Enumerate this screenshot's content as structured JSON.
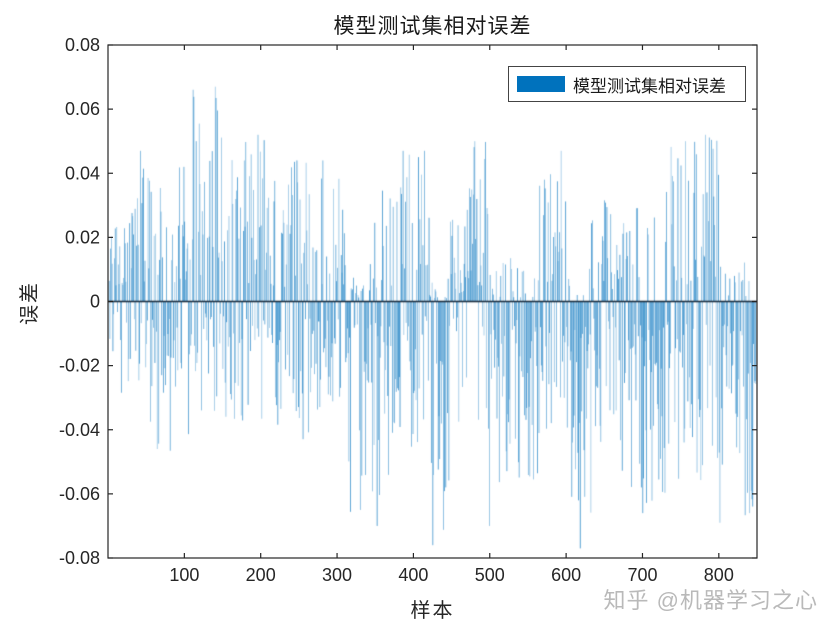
{
  "watermark": {
    "text": "知乎 @机器学习之心"
  },
  "chart_data": {
    "type": "bar",
    "title": "模型测试集相对误差",
    "xlabel": "样本",
    "ylabel": "误差",
    "legend": [
      "模型测试集相对误差"
    ],
    "legend_position": "top-right-inside",
    "bar_color": "#0072BD",
    "axis_color": "#262626",
    "baseline_color": "#16293a",
    "n_samples": 848,
    "xlim": [
      0,
      850
    ],
    "ylim": [
      -0.08,
      0.08
    ],
    "xticks": [
      100,
      200,
      300,
      400,
      500,
      600,
      700,
      800
    ],
    "yticks": [
      0.08,
      0.06,
      0.04,
      0.02,
      0,
      -0.02,
      -0.04,
      -0.06,
      -0.08
    ],
    "ytick_labels": [
      "0.08",
      "0.06",
      "0.04",
      "0.02",
      "0",
      "-0.02",
      "-0.04",
      "-0.06",
      "-0.08"
    ],
    "grid": false,
    "seed": 1337,
    "envelope_segments": [
      {
        "from": 1,
        "to": 30,
        "pos_max": 0.033,
        "neg_max": 0.03,
        "pos_frac": 0.55
      },
      {
        "from": 30,
        "to": 60,
        "pos_max": 0.047,
        "neg_max": 0.046,
        "pos_frac": 0.5
      },
      {
        "from": 60,
        "to": 105,
        "pos_max": 0.042,
        "neg_max": 0.047,
        "pos_frac": 0.52
      },
      {
        "from": 105,
        "to": 150,
        "pos_max": 0.067,
        "neg_max": 0.037,
        "pos_frac": 0.6
      },
      {
        "from": 150,
        "to": 215,
        "pos_max": 0.052,
        "neg_max": 0.04,
        "pos_frac": 0.58
      },
      {
        "from": 215,
        "to": 265,
        "pos_max": 0.044,
        "neg_max": 0.043,
        "pos_frac": 0.5
      },
      {
        "from": 265,
        "to": 312,
        "pos_max": 0.044,
        "neg_max": 0.036,
        "pos_frac": 0.45
      },
      {
        "from": 312,
        "to": 345,
        "pos_max": 0.012,
        "neg_max": 0.07,
        "pos_frac": 0.22
      },
      {
        "from": 345,
        "to": 378,
        "pos_max": 0.035,
        "neg_max": 0.066,
        "pos_frac": 0.3
      },
      {
        "from": 378,
        "to": 420,
        "pos_max": 0.047,
        "neg_max": 0.046,
        "pos_frac": 0.5
      },
      {
        "from": 420,
        "to": 447,
        "pos_max": 0.01,
        "neg_max": 0.076,
        "pos_frac": 0.18
      },
      {
        "from": 447,
        "to": 468,
        "pos_max": 0.026,
        "neg_max": 0.042,
        "pos_frac": 0.45
      },
      {
        "from": 468,
        "to": 497,
        "pos_max": 0.05,
        "neg_max": 0.046,
        "pos_frac": 0.55
      },
      {
        "from": 497,
        "to": 527,
        "pos_max": 0.014,
        "neg_max": 0.07,
        "pos_frac": 0.25
      },
      {
        "from": 527,
        "to": 562,
        "pos_max": 0.012,
        "neg_max": 0.056,
        "pos_frac": 0.22
      },
      {
        "from": 562,
        "to": 601,
        "pos_max": 0.047,
        "neg_max": 0.051,
        "pos_frac": 0.45
      },
      {
        "from": 601,
        "to": 632,
        "pos_max": 0.012,
        "neg_max": 0.077,
        "pos_frac": 0.18
      },
      {
        "from": 632,
        "to": 668,
        "pos_max": 0.036,
        "neg_max": 0.046,
        "pos_frac": 0.45
      },
      {
        "from": 668,
        "to": 722,
        "pos_max": 0.03,
        "neg_max": 0.068,
        "pos_frac": 0.28
      },
      {
        "from": 722,
        "to": 772,
        "pos_max": 0.05,
        "neg_max": 0.062,
        "pos_frac": 0.48
      },
      {
        "from": 772,
        "to": 802,
        "pos_max": 0.052,
        "neg_max": 0.056,
        "pos_frac": 0.45
      },
      {
        "from": 802,
        "to": 848,
        "pos_max": 0.014,
        "neg_max": 0.068,
        "pos_frac": 0.18
      }
    ],
    "observed_extremes": [
      {
        "x": 42,
        "y": 0.047
      },
      {
        "x": 64,
        "y": -0.046
      },
      {
        "x": 115,
        "y": 0.05
      },
      {
        "x": 140,
        "y": 0.067
      },
      {
        "x": 196,
        "y": 0.052
      },
      {
        "x": 247,
        "y": 0.044
      },
      {
        "x": 281,
        "y": 0.044
      },
      {
        "x": 330,
        "y": -0.065
      },
      {
        "x": 352,
        "y": -0.07
      },
      {
        "x": 386,
        "y": 0.047
      },
      {
        "x": 414,
        "y": 0.047
      },
      {
        "x": 425,
        "y": -0.076
      },
      {
        "x": 480,
        "y": 0.05
      },
      {
        "x": 499,
        "y": -0.07
      },
      {
        "x": 571,
        "y": 0.038
      },
      {
        "x": 593,
        "y": 0.047
      },
      {
        "x": 618,
        "y": -0.077
      },
      {
        "x": 700,
        "y": -0.066
      },
      {
        "x": 756,
        "y": 0.05
      },
      {
        "x": 782,
        "y": 0.052
      },
      {
        "x": 801,
        "y": -0.069
      },
      {
        "x": 840,
        "y": -0.066
      }
    ]
  }
}
